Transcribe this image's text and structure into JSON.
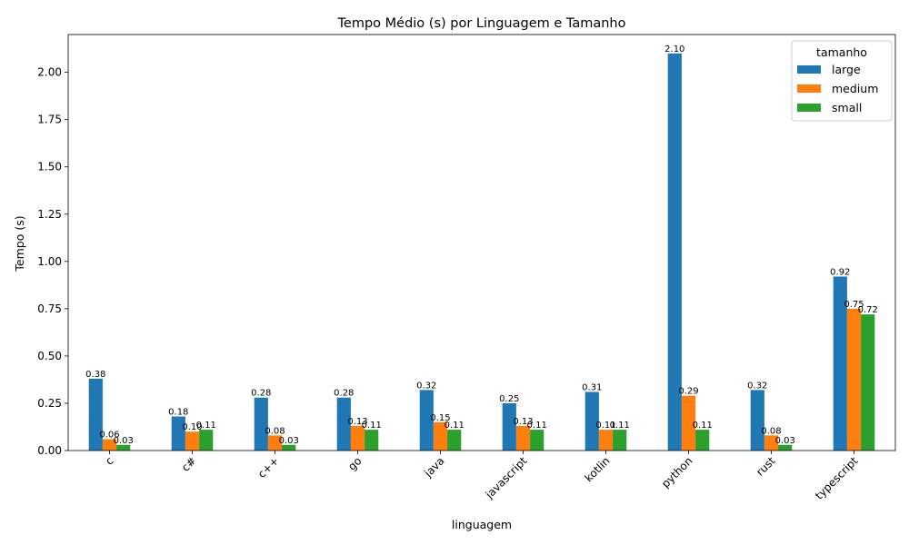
{
  "chart_data": {
    "type": "bar",
    "title": "Tempo Médio (s) por Linguagem e Tamanho",
    "xlabel": "linguagem",
    "ylabel": "Tempo (s)",
    "ylim": [
      0,
      2.2
    ],
    "yticks": [
      "0.00",
      "0.25",
      "0.50",
      "0.75",
      "1.00",
      "1.25",
      "1.50",
      "1.75",
      "2.00"
    ],
    "categories": [
      "c",
      "c#",
      "c++",
      "go",
      "java",
      "javascript",
      "kotlin",
      "python",
      "rust",
      "typescript"
    ],
    "legend": {
      "title": "tamanho",
      "position": "top-right"
    },
    "grid": false,
    "series": [
      {
        "name": "large",
        "color": "#1f77b4",
        "values": [
          0.38,
          0.18,
          0.28,
          0.28,
          0.32,
          0.25,
          0.31,
          2.1,
          0.32,
          0.92
        ],
        "labels": [
          "0.38",
          "0.18",
          "0.28",
          "0.28",
          "0.32",
          "0.25",
          "0.31",
          "2.10",
          "0.32",
          "0.92"
        ]
      },
      {
        "name": "medium",
        "color": "#ff7f0e",
        "values": [
          0.06,
          0.1,
          0.08,
          0.13,
          0.15,
          0.13,
          0.11,
          0.29,
          0.08,
          0.75
        ],
        "labels": [
          "0.06",
          "0.10",
          "0.08",
          "0.13",
          "0.15",
          "0.13",
          "0.11",
          "0.29",
          "0.08",
          "0.75"
        ]
      },
      {
        "name": "small",
        "color": "#2ca02c",
        "values": [
          0.03,
          0.11,
          0.03,
          0.11,
          0.11,
          0.11,
          0.11,
          0.11,
          0.03,
          0.72
        ],
        "labels": [
          "0.03",
          "0.11",
          "0.03",
          "0.11",
          "0.11",
          "0.11",
          "0.11",
          "0.11",
          "0.03",
          "0.72"
        ]
      }
    ]
  }
}
